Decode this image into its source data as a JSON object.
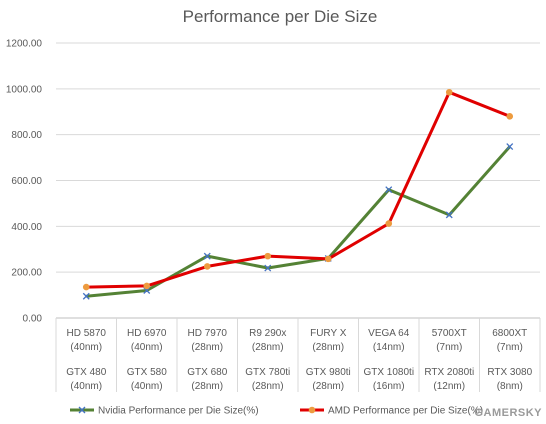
{
  "chart_data": {
    "type": "line",
    "title": "Performance per Die Size",
    "ylim": [
      0,
      1200
    ],
    "yticks": [
      "0.00",
      "200.00",
      "400.00",
      "600.00",
      "800.00",
      "1000.00",
      "1200.00"
    ],
    "grid": true,
    "legend_position": "bottom",
    "categories": [
      {
        "amd": "HD 5870",
        "amd_node": "(40nm)",
        "nvidia": "GTX 480",
        "nvidia_node": "(40nm)"
      },
      {
        "amd": "HD 6970",
        "amd_node": "(40nm)",
        "nvidia": "GTX 580",
        "nvidia_node": "(40nm)"
      },
      {
        "amd": "HD 7970",
        "amd_node": "(28nm)",
        "nvidia": "GTX 680",
        "nvidia_node": "(28nm)"
      },
      {
        "amd": "R9 290x",
        "amd_node": "(28nm)",
        "nvidia": "GTX 780ti",
        "nvidia_node": "(28nm)"
      },
      {
        "amd": "FURY X",
        "amd_node": "(28nm)",
        "nvidia": "GTX 980ti",
        "nvidia_node": "(28nm)"
      },
      {
        "amd": "VEGA 64",
        "amd_node": "(14nm)",
        "nvidia": "GTX 1080ti",
        "nvidia_node": "(16nm)"
      },
      {
        "amd": "5700XT",
        "amd_node": "(7nm)",
        "nvidia": "RTX 2080ti",
        "nvidia_node": "(12nm)"
      },
      {
        "amd": "6800XT",
        "amd_node": "(7nm)",
        "nvidia": "RTX 3080",
        "nvidia_node": "(8nm)"
      }
    ],
    "series": [
      {
        "name": "Nvidia Performance per Die Size(%)",
        "color": "#548235",
        "marker": "x",
        "marker_color": "#4472c4",
        "values": [
          95,
          120,
          270,
          218,
          260,
          560,
          450,
          748
        ]
      },
      {
        "name": "AMD Performance per Die Size(%)",
        "color": "#e00000",
        "marker": "circle",
        "marker_color": "#ed9b3f",
        "values": [
          135,
          140,
          225,
          270,
          258,
          412,
          985,
          880
        ]
      }
    ]
  },
  "watermark": "GAMERSKY"
}
